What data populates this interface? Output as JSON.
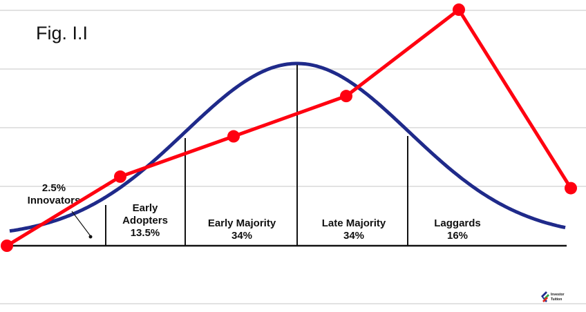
{
  "chart_data": {
    "type": "line",
    "title": "Fig. I.I",
    "xlabel": "",
    "ylabel": "",
    "grid": true,
    "segments": [
      {
        "lines": [
          "2.5%",
          "Innovators"
        ],
        "share_percent": 2.5
      },
      {
        "lines": [
          "Early",
          "Adopters",
          "13.5%"
        ],
        "share_percent": 13.5
      },
      {
        "lines": [
          "Early Majority",
          "34%"
        ],
        "share_percent": 34
      },
      {
        "lines": [
          "Late Majority",
          "34%"
        ],
        "share_percent": 34
      },
      {
        "lines": [
          "Laggards",
          "16%"
        ],
        "share_percent": 16
      }
    ],
    "series": [
      {
        "type": "line",
        "color": "#ff0010",
        "markers": true,
        "values": [
          0,
          1.2,
          1.9,
          2.6,
          4.1,
          1.0
        ]
      },
      {
        "type": "bell-curve",
        "color": "#1f2a8a"
      }
    ]
  },
  "logo": {
    "lines": [
      "Investor",
      "Tuition"
    ]
  }
}
